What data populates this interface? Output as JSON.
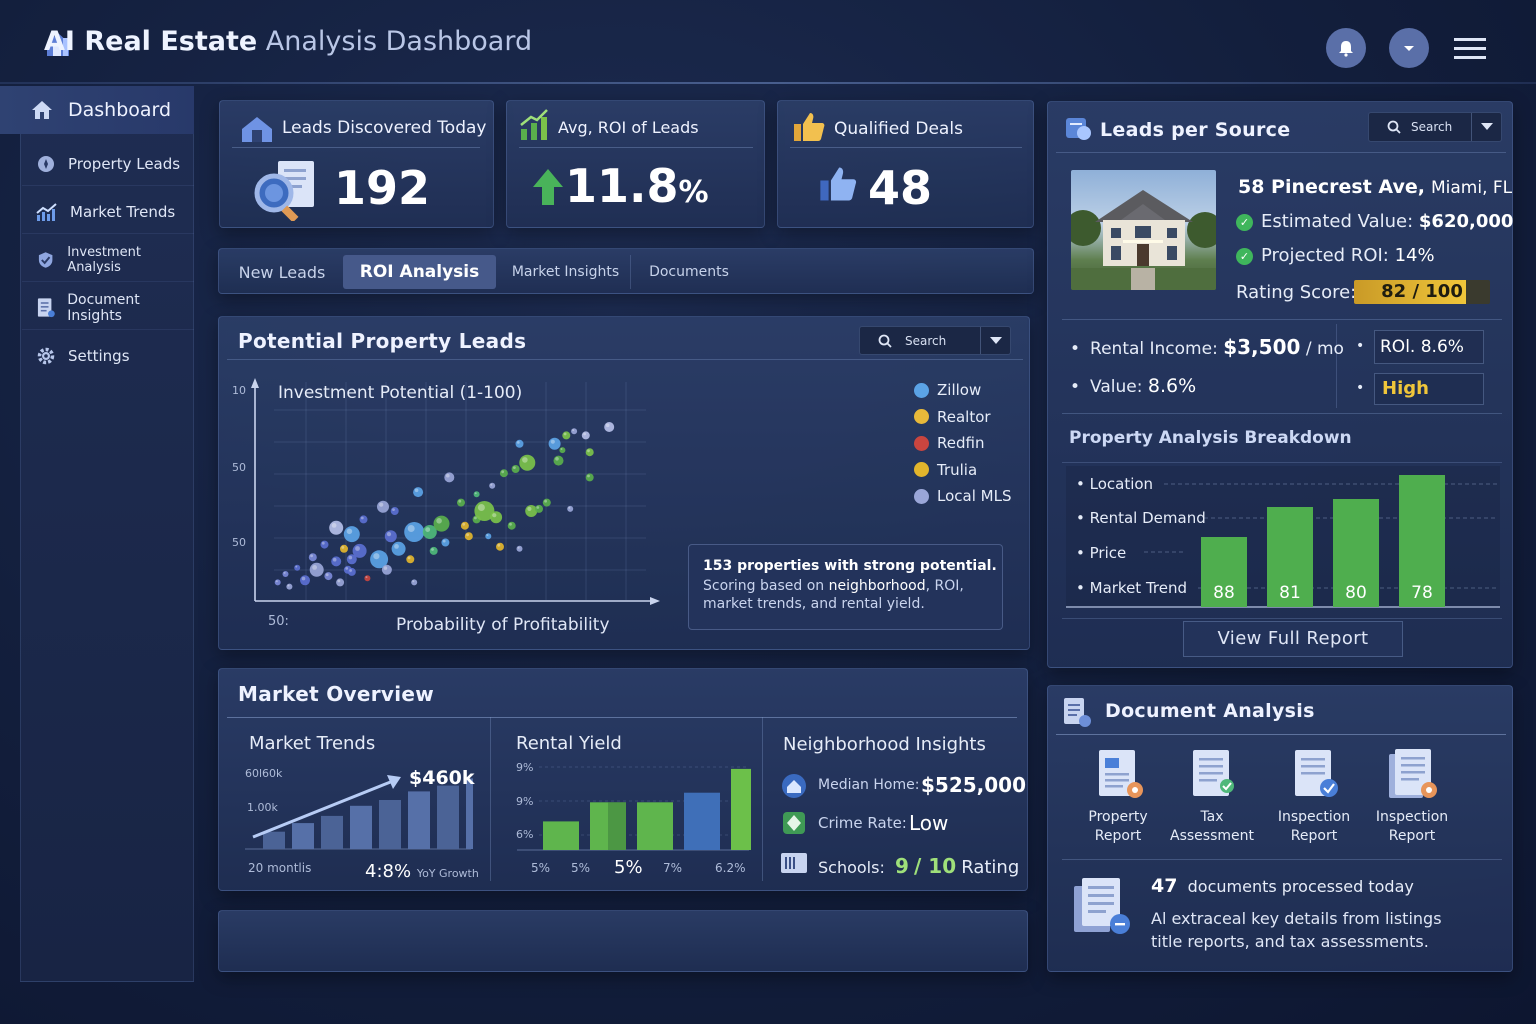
{
  "header": {
    "title_bold": "AI Real Estate",
    "title_rest": "Analysis Dashboard"
  },
  "sidebar": {
    "active": {
      "label": "Dashboard",
      "icon": "home-icon"
    },
    "items": [
      {
        "label": "Property Leads",
        "icon": "leads-icon"
      },
      {
        "label": "Market Trends",
        "icon": "trend-icon"
      },
      {
        "label": "Investment Analysis",
        "icon": "shield-icon"
      },
      {
        "label": "Document Insights",
        "icon": "document-icon"
      },
      {
        "label": "Settings",
        "icon": "gear-icon"
      }
    ]
  },
  "kpis": [
    {
      "title": "Leads  Discovered Today",
      "value": "192"
    },
    {
      "title": "Avg, ROI of Leads",
      "value": "11.8",
      "unit": "%"
    },
    {
      "title": "Qualified Deals",
      "value": "48"
    }
  ],
  "tabs": [
    "New Leads",
    "ROI Analysis",
    "Market Insights",
    "Documents"
  ],
  "leads_panel": {
    "title": "Potential Property Leads",
    "search_label": "Search",
    "callout_title": "153 properties with strong potential.",
    "callout_line1_pre": "Scoring based on ",
    "callout_line1_em": "neighborhood",
    "callout_line1_post": ", ROI,",
    "callout_line2": "market trends, and rental yield."
  },
  "chart_data": {
    "type": "scatter",
    "title": "Investment Potential (1-100)",
    "xlabel": "Probability of Profitability",
    "ylabel": "Investment Potential (1-100)",
    "y_tick_labels": [
      "10",
      "50",
      "50"
    ],
    "x_tick_label": "50:",
    "legend": [
      {
        "name": "Zillow",
        "color": "#5ba3e6"
      },
      {
        "name": "Realtor",
        "color": "#e8b93a"
      },
      {
        "name": "Redfin",
        "color": "#c9453f"
      },
      {
        "name": "Trulia",
        "color": "#e2b52c"
      },
      {
        "name": "Local MLS",
        "color": "#9aa6d8"
      }
    ],
    "series_points": [
      {
        "x": 3,
        "y": 6,
        "r": 3,
        "c": "#7c8ad8"
      },
      {
        "x": 5,
        "y": 10,
        "r": 3,
        "c": "#7c8ad8"
      },
      {
        "x": 6,
        "y": 4,
        "r": 3,
        "c": "#9aa6d8"
      },
      {
        "x": 8,
        "y": 13,
        "r": 3,
        "c": "#5b6fd0"
      },
      {
        "x": 10,
        "y": 7,
        "r": 5,
        "c": "#5b6fd0"
      },
      {
        "x": 12,
        "y": 18,
        "r": 4,
        "c": "#7c8ad8"
      },
      {
        "x": 13,
        "y": 12,
        "r": 7,
        "c": "#9aa6d8"
      },
      {
        "x": 15,
        "y": 24,
        "r": 4,
        "c": "#5b6fd0"
      },
      {
        "x": 16,
        "y": 9,
        "r": 4,
        "c": "#7c8ad8"
      },
      {
        "x": 18,
        "y": 32,
        "r": 7,
        "c": "#b5bfe8"
      },
      {
        "x": 18,
        "y": 16,
        "r": 5,
        "c": "#5b6fd0"
      },
      {
        "x": 19,
        "y": 6,
        "r": 4,
        "c": "#9aa6d8"
      },
      {
        "x": 20,
        "y": 22,
        "r": 4,
        "c": "#e2b52c"
      },
      {
        "x": 21,
        "y": 12,
        "r": 4,
        "c": "#5b6fd0"
      },
      {
        "x": 22,
        "y": 29,
        "r": 8,
        "c": "#5ba3e6"
      },
      {
        "x": 22,
        "y": 17,
        "r": 5,
        "c": "#5b6fd0"
      },
      {
        "x": 22,
        "y": 11,
        "r": 4,
        "c": "#5b6fd0"
      },
      {
        "x": 24,
        "y": 21,
        "r": 7,
        "c": "#5b6fd0"
      },
      {
        "x": 25,
        "y": 36,
        "r": 4,
        "c": "#5b6fd0"
      },
      {
        "x": 26,
        "y": 8,
        "r": 3,
        "c": "#c9453f"
      },
      {
        "x": 29,
        "y": 17,
        "r": 9,
        "c": "#5ba3e6"
      },
      {
        "x": 30,
        "y": 42,
        "r": 6,
        "c": "#9aa6d8"
      },
      {
        "x": 31,
        "y": 12,
        "r": 5,
        "c": "#9aa6d8"
      },
      {
        "x": 32,
        "y": 28,
        "r": 6,
        "c": "#5b6fd0"
      },
      {
        "x": 33,
        "y": 40,
        "r": 4,
        "c": "#5b6fd0"
      },
      {
        "x": 34,
        "y": 22,
        "r": 7,
        "c": "#5ba3e6"
      },
      {
        "x": 38,
        "y": 30,
        "r": 10,
        "c": "#5ba3e6"
      },
      {
        "x": 37,
        "y": 17,
        "r": 4,
        "c": "#e2b52c"
      },
      {
        "x": 38,
        "y": 6,
        "r": 3,
        "c": "#9aa6d8"
      },
      {
        "x": 39,
        "y": 49,
        "r": 5,
        "c": "#5ba3e6"
      },
      {
        "x": 42,
        "y": 30,
        "r": 7,
        "c": "#4fb87a"
      },
      {
        "x": 43,
        "y": 21,
        "r": 4,
        "c": "#4fb87a"
      },
      {
        "x": 45,
        "y": 34,
        "r": 8,
        "c": "#5aaf4c"
      },
      {
        "x": 46,
        "y": 25,
        "r": 4,
        "c": "#5ba3e6"
      },
      {
        "x": 47,
        "y": 56,
        "r": 5,
        "c": "#9aa6d8"
      },
      {
        "x": 50,
        "y": 44,
        "r": 4,
        "c": "#5aaf4c"
      },
      {
        "x": 51,
        "y": 33,
        "r": 4,
        "c": "#e2b52c"
      },
      {
        "x": 52,
        "y": 28,
        "r": 4,
        "c": "#e2b52c"
      },
      {
        "x": 54,
        "y": 36,
        "r": 4,
        "c": "#5aaf4c"
      },
      {
        "x": 54,
        "y": 48,
        "r": 3,
        "c": "#4fb87a"
      },
      {
        "x": 56,
        "y": 40,
        "r": 10,
        "c": "#7bc24a"
      },
      {
        "x": 57,
        "y": 28,
        "r": 3,
        "c": "#5ba3e6"
      },
      {
        "x": 58,
        "y": 52,
        "r": 3,
        "c": "#9aa6d8"
      },
      {
        "x": 59,
        "y": 37,
        "r": 6,
        "c": "#7bc24a"
      },
      {
        "x": 60,
        "y": 23,
        "r": 4,
        "c": "#e2b52c"
      },
      {
        "x": 61,
        "y": 58,
        "r": 4,
        "c": "#5aaf4c"
      },
      {
        "x": 63,
        "y": 33,
        "r": 4,
        "c": "#5aaf4c"
      },
      {
        "x": 64,
        "y": 60,
        "r": 4,
        "c": "#5aaf4c"
      },
      {
        "x": 65,
        "y": 72,
        "r": 4,
        "c": "#5ba3e6"
      },
      {
        "x": 65,
        "y": 22,
        "r": 3,
        "c": "#9aa6d8"
      },
      {
        "x": 67,
        "y": 63,
        "r": 8,
        "c": "#7bc24a"
      },
      {
        "x": 68,
        "y": 40,
        "r": 6,
        "c": "#7bc24a"
      },
      {
        "x": 70,
        "y": 41,
        "r": 4,
        "c": "#5aaf4c"
      },
      {
        "x": 72,
        "y": 44,
        "r": 4,
        "c": "#5aaf4c"
      },
      {
        "x": 74,
        "y": 72,
        "r": 6,
        "c": "#5ba3e6"
      },
      {
        "x": 75,
        "y": 64,
        "r": 5,
        "c": "#5aaf4c"
      },
      {
        "x": 76,
        "y": 69,
        "r": 3,
        "c": "#5aaf4c"
      },
      {
        "x": 77,
        "y": 76,
        "r": 4,
        "c": "#7bc24a"
      },
      {
        "x": 78,
        "y": 41,
        "r": 3,
        "c": "#9aa6d8"
      },
      {
        "x": 79,
        "y": 78,
        "r": 3,
        "c": "#9aa6d8"
      },
      {
        "x": 82,
        "y": 76,
        "r": 4,
        "c": "#b5bfe8"
      },
      {
        "x": 83,
        "y": 68,
        "r": 4,
        "c": "#7bc24a"
      },
      {
        "x": 83,
        "y": 56,
        "r": 4,
        "c": "#5aaf4c"
      },
      {
        "x": 88,
        "y": 80,
        "r": 5,
        "c": "#b5bfe8"
      }
    ]
  },
  "market": {
    "title": "Market Overview",
    "trends": {
      "title": "Market Trends",
      "value": "$460k",
      "tick1": "60l60k",
      "tick2": "1.00k",
      "period": "20 montlis",
      "growth": "4:8%",
      "growth_label": "YoY Growth",
      "bars": [
        1.2,
        1.8,
        2.3,
        3.0,
        3.4,
        4.0,
        4.4,
        4.9
      ]
    },
    "rental": {
      "title": "Rental Yield",
      "ticks": [
        "9%",
        "9%",
        "6%"
      ],
      "xlabels": [
        "5%",
        "5%",
        "5%",
        "7%",
        "6.2%"
      ],
      "bars": [
        3.0,
        5.0,
        5.0,
        6.0,
        8.5
      ]
    },
    "neighborhood": {
      "title": "Neighborhood Insights",
      "median_label": "Median Home:",
      "median_value": "$525,000",
      "crime_label": "Crime Rate:",
      "crime_value": "Low",
      "schools_label": "Schools:",
      "schools_score": "9",
      "schools_of": "/ 10",
      "schools_suffix": "Rating"
    }
  },
  "source_panel": {
    "title": "Leads per Source",
    "search_label": "Search",
    "address_bold": "58 Pinecrest Ave,",
    "address_rest": "Miami, FL",
    "est_label": "Estimated Value:",
    "est_value": "$620,000",
    "roi_label": "Projected ROI:",
    "roi_value": "14%",
    "rating_label": "Rating Score:",
    "rating_value": "82 / 100",
    "rating_pct": 82,
    "rental_label": "Rental Income:",
    "rental_value": "$3,500",
    "rental_unit": "/ mo",
    "value_label": "Value:",
    "value_value": "8.6%",
    "roi_box": "ROl. 8.6%",
    "high_box": "High",
    "breakdown_title": "Property Analysis Breakdown",
    "breakdown_labels": [
      "Location",
      "Rental Demand",
      "Price",
      "Market Trend"
    ],
    "breakdown_values": [
      88,
      81,
      80,
      78
    ],
    "breakdown_heights": [
      70,
      100,
      108,
      132
    ],
    "report_button": "View Full Report"
  },
  "documents": {
    "title": "Document Analysis",
    "items": [
      {
        "line1": "Property",
        "line2": "Report",
        "badge": "#e8955a"
      },
      {
        "line1": "Tax",
        "line2": "Assessment",
        "badge": "#4fb87a"
      },
      {
        "line1": "Inspection",
        "line2": "Report",
        "badge": "#4a7fd8"
      },
      {
        "line1": "Inspection",
        "line2": "Report",
        "badge": "#e8955a"
      }
    ],
    "count": "47",
    "count_label": "documents processed today",
    "desc1": "Al extraceal key details from listings",
    "desc2": "title reports, and tax assessments."
  }
}
